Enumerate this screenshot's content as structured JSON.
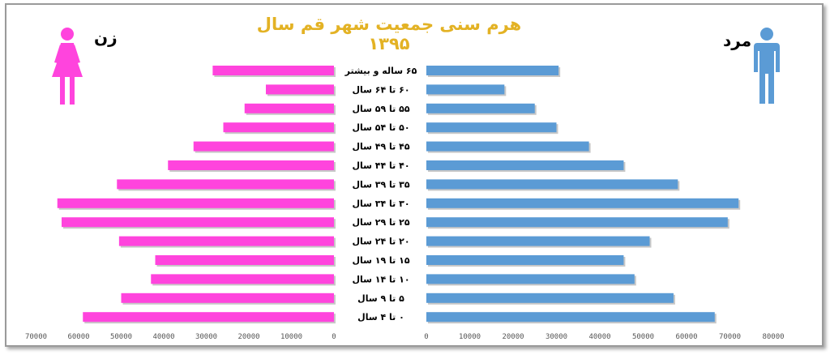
{
  "title": "هرم سنی جمعیت شهر قم سال ۱۳۹۵",
  "labels": {
    "female": "زن",
    "male": "مرد"
  },
  "icons": {
    "female": "woman-icon",
    "male": "man-icon"
  },
  "colors": {
    "female": "#ff44dd",
    "male": "#5b9bd5",
    "title": "#e3b224"
  },
  "chart_data": {
    "type": "bar",
    "orientation": "horizontal",
    "categories": [
      "۶۵ ساله و بیشتر",
      "۶۰ تا ۶۴ سال",
      "۵۵ تا ۵۹ سال",
      "۵۰ تا ۵۴ سال",
      "۴۵ تا ۴۹ سال",
      "۴۰ تا ۴۴ سال",
      "۳۵ تا ۳۹ سال",
      "۳۰ تا ۳۴ سال",
      "۲۵ تا ۲۹ سال",
      "۲۰ تا ۲۴ سال",
      "۱۵ تا ۱۹ سال",
      "۱۰ تا ۱۴ سال",
      "۵ تا ۹ سال",
      "۰ تا ۴ سال"
    ],
    "series": [
      {
        "name": "زن",
        "values": [
          28500,
          16000,
          21000,
          26000,
          33000,
          39000,
          51000,
          65000,
          64000,
          50500,
          42000,
          43000,
          50000,
          59000
        ]
      },
      {
        "name": "مرد",
        "values": [
          30500,
          18000,
          25000,
          30000,
          37500,
          45500,
          58000,
          72000,
          69500,
          51500,
          45500,
          48000,
          57000,
          66500
        ]
      }
    ],
    "female_axis": {
      "ticks": [
        0,
        10000,
        20000,
        30000,
        40000,
        50000,
        60000,
        70000
      ],
      "tick_labels": [
        "0",
        "10000",
        "20000",
        "30000",
        "40000",
        "50000",
        "60000",
        "70000"
      ],
      "range": [
        0,
        70000
      ]
    },
    "male_axis": {
      "ticks": [
        0,
        10000,
        20000,
        30000,
        40000,
        50000,
        60000,
        70000,
        80000
      ],
      "tick_labels": [
        "0",
        "10000",
        "20000",
        "30000",
        "40000",
        "50000",
        "60000",
        "70000",
        "80000"
      ],
      "range": [
        0,
        80000
      ]
    },
    "grid": false,
    "legend": "none"
  }
}
